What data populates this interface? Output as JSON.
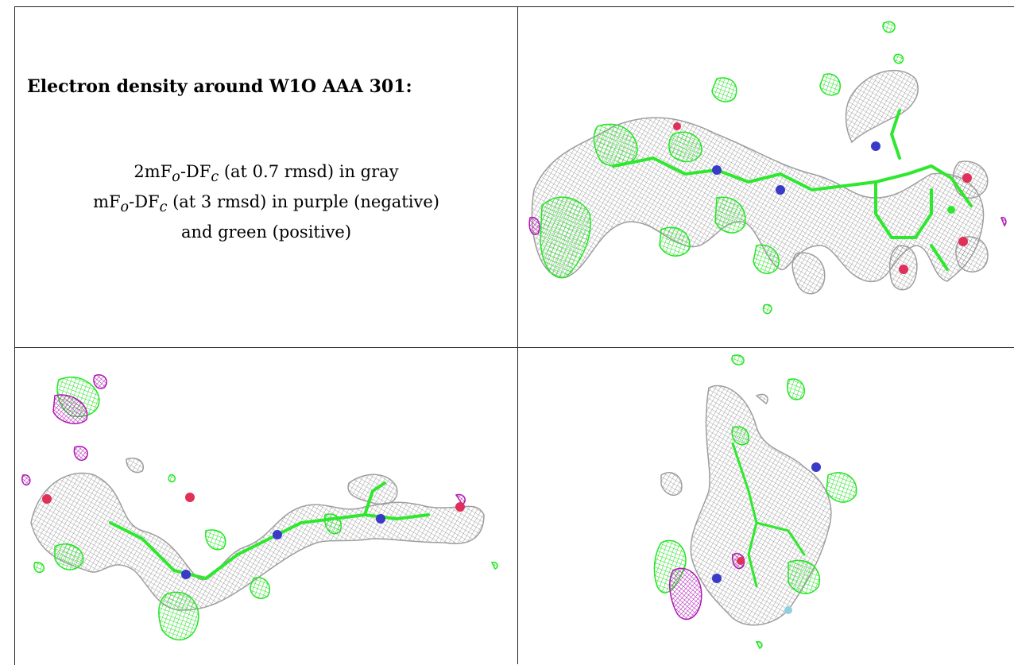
{
  "title": "Electron density around W1O AAA 301:",
  "legend": {
    "line1": {
      "prefix": "2mF",
      "sub1": "o",
      "mid": "-DF",
      "sub2": "c",
      "suffix": " (at 0.7 rmsd) in gray"
    },
    "line2": {
      "prefix": "mF",
      "sub1": "o",
      "mid": "-DF",
      "sub2": "c",
      "suffix": " (at 3 rmsd) in purple (negative)"
    },
    "line3": "and green (positive)"
  },
  "colors": {
    "density_2fofc": "#9e9e9e",
    "diff_positive": "#22e622",
    "diff_negative": "#b01ab5",
    "nitrogen": "#3a3ac8",
    "oxygen": "#e0305a"
  },
  "panels": [
    {
      "name": "view-top-right"
    },
    {
      "name": "view-bottom-left"
    },
    {
      "name": "view-bottom-right"
    }
  ]
}
